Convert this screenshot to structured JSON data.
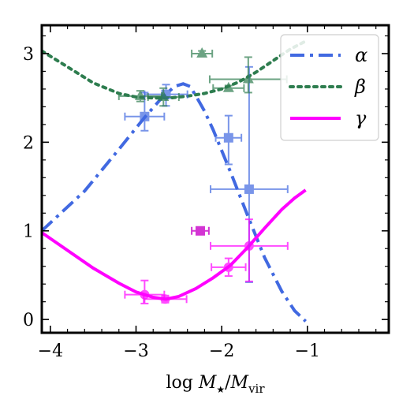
{
  "chart_data": {
    "type": "line",
    "xlabel_parts": {
      "prefix": "log ",
      "m1": "M",
      "sub1": "★",
      "slash": "/",
      "m2": "M",
      "sub2": "vir"
    },
    "xlim": [
      -4.1,
      -0.05
    ],
    "ylim": [
      -0.15,
      3.32
    ],
    "xticks": [
      -4,
      -3,
      -2,
      -1
    ],
    "xtick_labels": [
      "−4",
      "−3",
      "−2",
      "−1"
    ],
    "yticks": [
      0,
      1,
      2,
      3
    ],
    "ytick_labels": [
      "0",
      "1",
      "2",
      "3"
    ],
    "legend": {
      "placement": "top-right",
      "entries": [
        "α",
        "β",
        "γ"
      ]
    },
    "colors": {
      "alpha": "#4169e1",
      "beta": "#2e7d4f",
      "gamma": "#ff00ff"
    },
    "series": [
      {
        "name": "α",
        "style": "dashdot",
        "line": {
          "x": [
            -4.1,
            -3.6,
            -3.2,
            -2.9,
            -2.7,
            -2.55,
            -2.45,
            -2.37,
            -2.3,
            -2.2,
            -2.1,
            -1.9,
            -1.7,
            -1.5,
            -1.3,
            -1.15,
            -1.02
          ],
          "y": [
            1.0,
            1.45,
            1.92,
            2.28,
            2.5,
            2.63,
            2.66,
            2.63,
            2.52,
            2.35,
            2.14,
            1.67,
            1.18,
            0.7,
            0.32,
            0.1,
            -0.02
          ]
        },
        "points": [
          {
            "x": -2.9,
            "y": 2.29,
            "xerr": 0.23,
            "yerr_lo": 0.16,
            "yerr_hi": 0.27
          },
          {
            "x": -2.65,
            "y": 2.54,
            "xerr": 0.25,
            "yerr_lo": 0.13,
            "yerr_hi": 0.11
          },
          {
            "x": -1.92,
            "y": 2.05,
            "xerr": 0.15,
            "yerr_lo": 0.3,
            "yerr_hi": 0.25
          },
          {
            "x": -1.68,
            "y": 1.47,
            "xerr": 0.45,
            "yerr_lo": 1.05,
            "yerr_hi": 1.38
          }
        ]
      },
      {
        "name": "β",
        "style": "dotted",
        "line": {
          "x": [
            -4.1,
            -3.8,
            -3.5,
            -3.2,
            -3.0,
            -2.8,
            -2.6,
            -2.4,
            -2.2,
            -2.0,
            -1.8,
            -1.6,
            -1.4,
            -1.2,
            -1.02
          ],
          "y": [
            3.03,
            2.85,
            2.67,
            2.55,
            2.51,
            2.5,
            2.5,
            2.52,
            2.55,
            2.6,
            2.68,
            2.79,
            2.92,
            3.05,
            3.14
          ]
        },
        "points": [
          {
            "x": -2.95,
            "y": 2.52,
            "xerr": 0.25,
            "yerr_lo": 0.06,
            "yerr_hi": 0.06
          },
          {
            "x": -2.68,
            "y": 2.51,
            "xerr": 0.18,
            "yerr_lo": 0.1,
            "yerr_hi": 0.1
          },
          {
            "x": -2.23,
            "y": 3.0,
            "xerr": 0.12,
            "yerr_lo": 0.03,
            "yerr_hi": 0.03
          },
          {
            "x": -1.92,
            "y": 2.61,
            "xerr": 0.18,
            "yerr_lo": 0.03,
            "yerr_hi": 0.03
          },
          {
            "x": -1.69,
            "y": 2.71,
            "xerr": 0.45,
            "yerr_lo": 0.15,
            "yerr_hi": 0.25
          }
        ]
      },
      {
        "name": "γ",
        "style": "solid",
        "line": {
          "x": [
            -4.1,
            -3.8,
            -3.5,
            -3.2,
            -3.0,
            -2.8,
            -2.65,
            -2.5,
            -2.3,
            -2.1,
            -1.9,
            -1.7,
            -1.5,
            -1.3,
            -1.15,
            -1.02
          ],
          "y": [
            0.98,
            0.78,
            0.58,
            0.41,
            0.31,
            0.25,
            0.23,
            0.26,
            0.35,
            0.47,
            0.61,
            0.81,
            1.03,
            1.24,
            1.37,
            1.46
          ]
        },
        "points": [
          {
            "x": -2.9,
            "y": 0.28,
            "xerr": 0.23,
            "yerr_lo": 0.1,
            "yerr_hi": 0.16
          },
          {
            "x": -2.66,
            "y": 0.23,
            "xerr": 0.25,
            "yerr_lo": 0.04,
            "yerr_hi": 0.04
          },
          {
            "x": -1.92,
            "y": 0.59,
            "xerr": 0.2,
            "yerr_lo": 0.1,
            "yerr_hi": 0.1
          },
          {
            "x": -1.68,
            "y": 0.83,
            "xerr": 0.45,
            "yerr_lo": 0.4,
            "yerr_hi": 0.3
          }
        ]
      }
    ],
    "extra_points": [
      {
        "x": -2.25,
        "y": 1.0,
        "xerr": 0.1,
        "yerr_lo": 0.02,
        "yerr_hi": 0.02,
        "color": "#cc11cc",
        "marker": "square"
      }
    ]
  }
}
